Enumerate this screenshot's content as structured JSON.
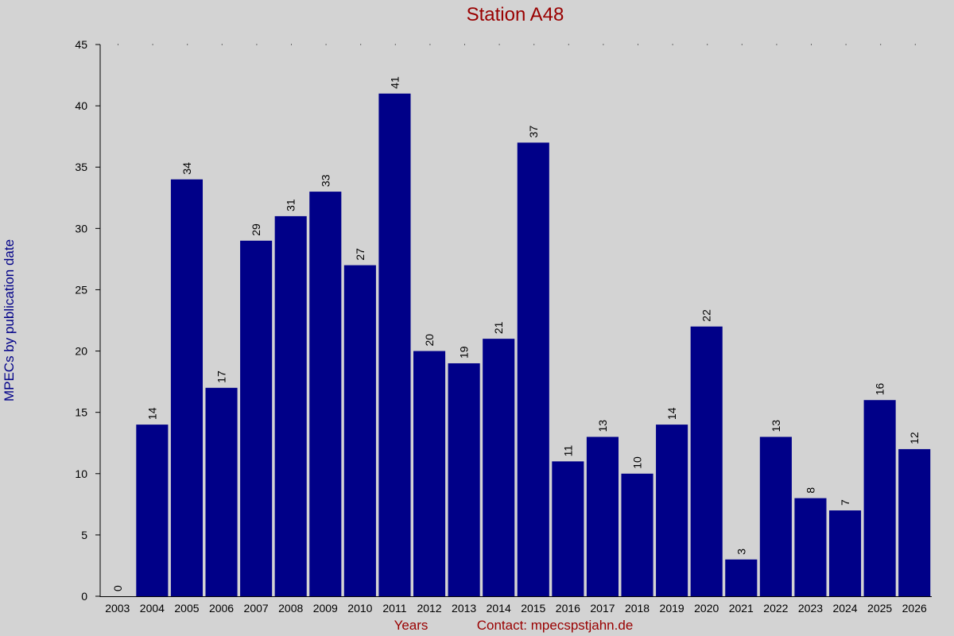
{
  "chart_data": {
    "type": "bar",
    "title": "Station A48",
    "y_label": "MPECs by publication date",
    "x_label": "Years",
    "annotation": "Contact: mpecspstjahn.de",
    "categories": [
      "2003",
      "2004",
      "2005",
      "2006",
      "2007",
      "2008",
      "2009",
      "2010",
      "2011",
      "2012",
      "2013",
      "2014",
      "2015",
      "2016",
      "2017",
      "2018",
      "2019",
      "2020",
      "2021",
      "2022",
      "2023",
      "2024",
      "2025",
      "2026"
    ],
    "values": [
      0,
      14,
      34,
      17,
      29,
      31,
      33,
      27,
      41,
      20,
      19,
      21,
      37,
      11,
      13,
      10,
      14,
      22,
      3,
      13,
      8,
      7,
      16,
      12
    ],
    "color": "#000088",
    "ylim": [
      0,
      45
    ],
    "yticks": [
      0,
      5,
      10,
      15,
      20,
      25,
      30,
      35,
      40,
      45
    ],
    "grid": false,
    "value_labels_shown": true
  }
}
